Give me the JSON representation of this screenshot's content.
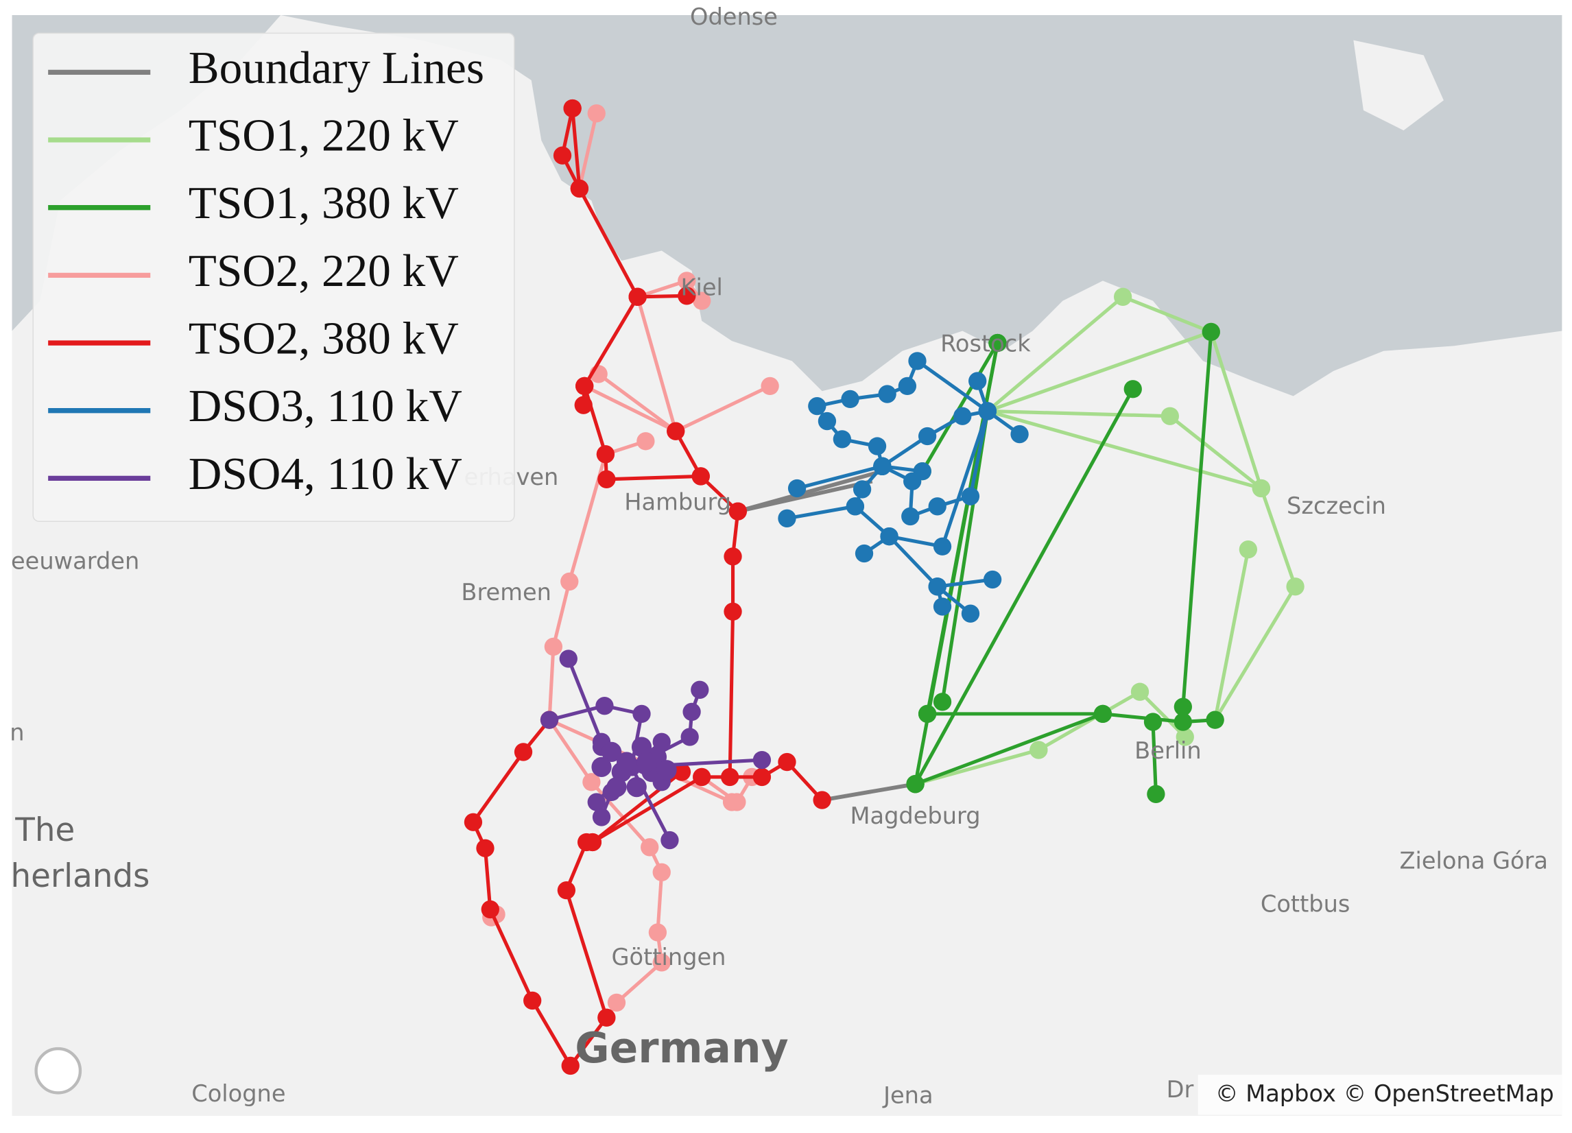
{
  "legend": {
    "entries": [
      {
        "label": "Boundary Lines",
        "color": "#808080"
      },
      {
        "label": "TSO1, 220 kV",
        "color": "#a6dc8c"
      },
      {
        "label": "TSO1, 380 kV",
        "color": "#2ca02c"
      },
      {
        "label": "TSO2, 220 kV",
        "color": "#f79c9c"
      },
      {
        "label": "TSO2, 380 kV",
        "color": "#e31a1c"
      },
      {
        "label": "DSO3, 110 kV",
        "color": "#1f77b4"
      },
      {
        "label": "DSO4, 110 kV",
        "color": "#6a3d9a"
      }
    ]
  },
  "map_labels": [
    "Odense",
    "Kiel",
    "Rostock",
    "erhaven",
    "Hamburg",
    "Szczecin",
    "eeuwarden",
    "Bremen",
    "n",
    "Berlin",
    "Magdeburg",
    "The",
    "herlands",
    "Zielona Góra",
    "Cottbus",
    "Göttingen",
    "Germany",
    "Cologne",
    "Jena",
    "Dr"
  ],
  "attribution": "© Mapbox © OpenStreetMap"
}
